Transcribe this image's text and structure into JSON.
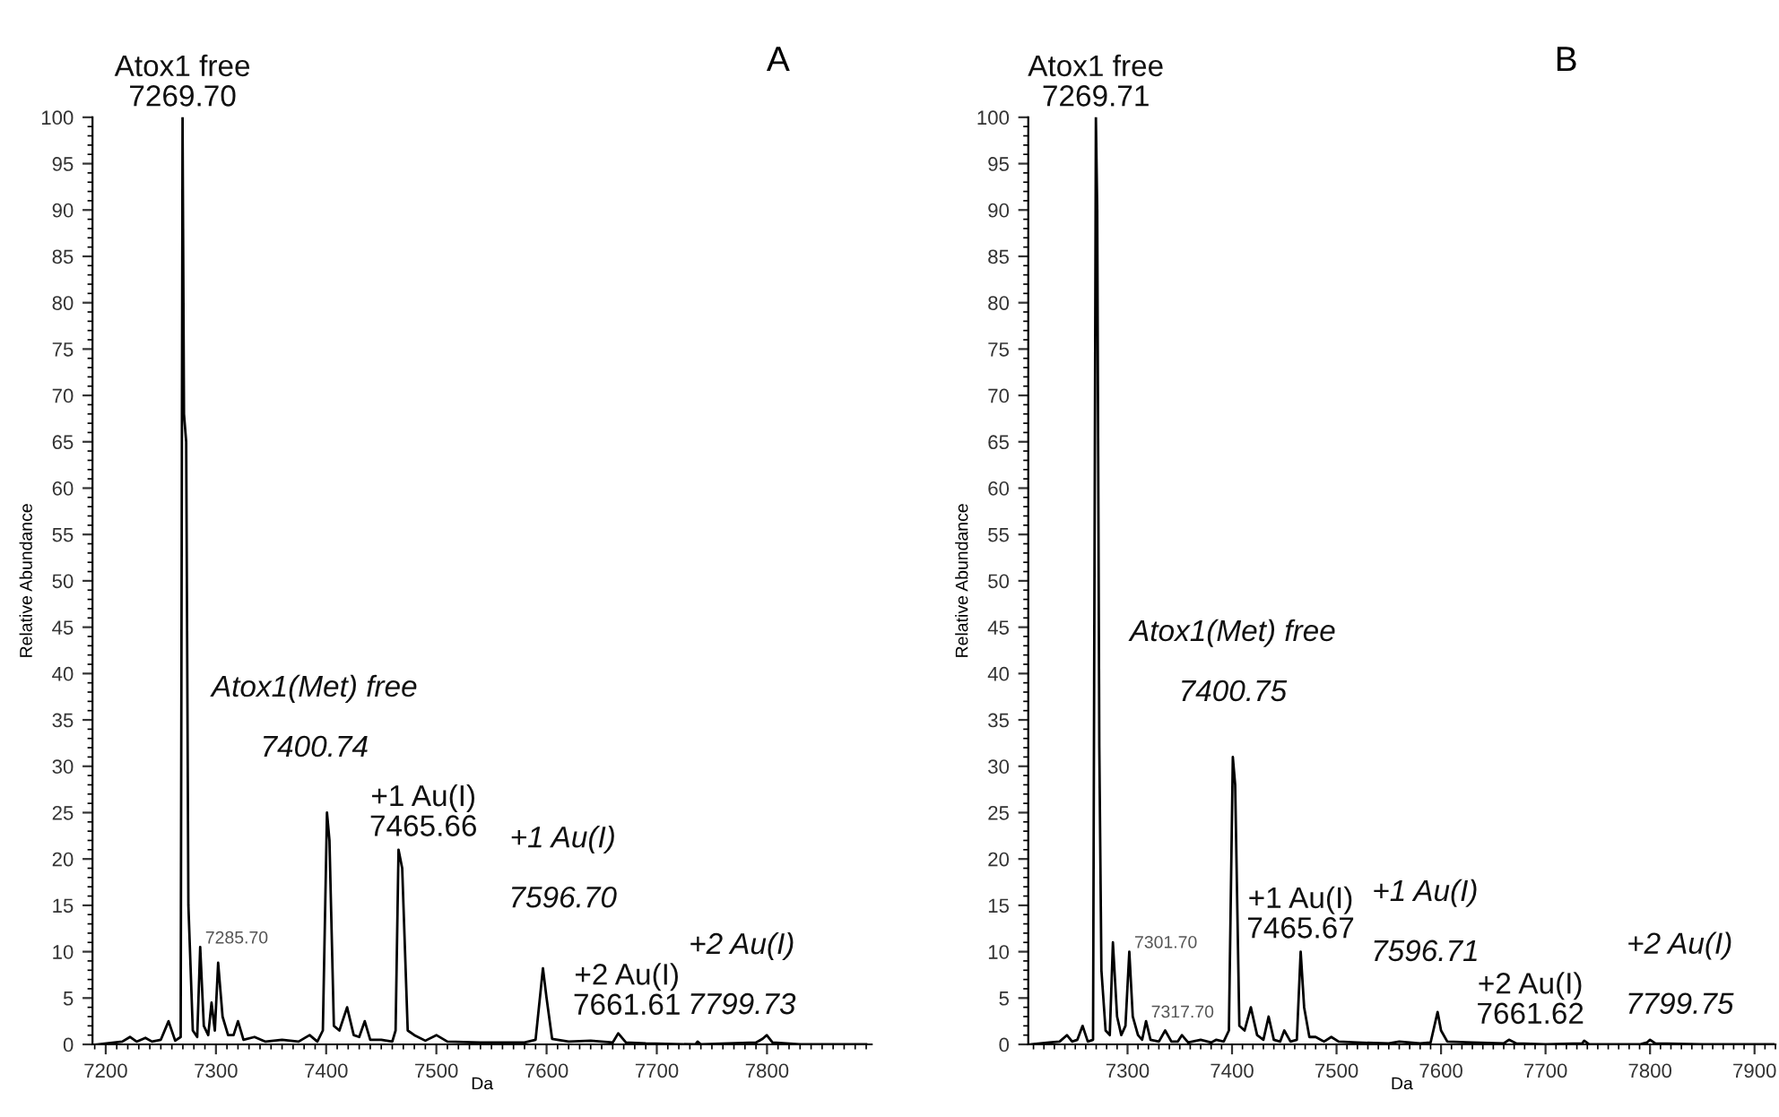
{
  "chart_data": [
    {
      "type": "line",
      "title": "A",
      "xlabel": "Da",
      "ylabel": "Relative Abundance",
      "xlim": [
        7188,
        7895
      ],
      "ylim": [
        0,
        100
      ],
      "xticks": [
        7200,
        7300,
        7400,
        7500,
        7600,
        7700,
        7800
      ],
      "yticks": [
        0,
        5,
        10,
        15,
        20,
        25,
        30,
        35,
        40,
        45,
        50,
        55,
        60,
        65,
        70,
        75,
        80,
        85,
        90,
        95,
        100
      ],
      "series": [
        {
          "color": "#000000",
          "x": [
            7192,
            7215,
            7222,
            7228,
            7236,
            7242,
            7250,
            7257,
            7263,
            7268,
            7269.7,
            7271,
            7273,
            7275,
            7279,
            7283,
            7285.7,
            7289,
            7293,
            7296,
            7299,
            7302,
            7306,
            7311,
            7316,
            7320,
            7325,
            7335,
            7345,
            7360,
            7375,
            7385,
            7392,
            7397,
            7400.74,
            7403,
            7407,
            7412,
            7419,
            7425,
            7430,
            7435,
            7440,
            7450,
            7460,
            7463,
            7465.66,
            7469,
            7474,
            7480,
            7490,
            7500,
            7510,
            7540,
            7580,
            7590,
            7596.7,
            7600,
            7605,
            7620,
            7640,
            7660,
            7665,
            7672,
            7690,
            7735,
            7737,
            7740,
            7790,
            7796,
            7799.73,
            7805,
            7830,
            7890
          ],
          "values": [
            0,
            0.3,
            0.8,
            0.3,
            0.7,
            0.3,
            0.5,
            2.5,
            0.4,
            0.8,
            100,
            68,
            65,
            15,
            1.5,
            0.8,
            10.5,
            2,
            1,
            4.5,
            1.5,
            8.8,
            3,
            1,
            1,
            2.5,
            0.5,
            0.8,
            0.3,
            0.5,
            0.3,
            1,
            0.3,
            1.5,
            25,
            22,
            2,
            1.5,
            4,
            1,
            0.8,
            2.5,
            0.5,
            0.5,
            0.3,
            1.5,
            21,
            19,
            1.5,
            1,
            0.4,
            1,
            0.3,
            0.2,
            0.2,
            0.5,
            8.2,
            5,
            0.6,
            0.3,
            0.4,
            0.2,
            1.2,
            0.2,
            0.1,
            0,
            0.3,
            0,
            0.2,
            0.6,
            1,
            0.2,
            0,
            0
          ]
        }
      ],
      "annotations": [
        {
          "text": "Atox1 free\n7269.70",
          "x": 7269.7,
          "y": 100
        },
        {
          "text": "7285.70",
          "x": 7285.7,
          "y": 10.5
        },
        {
          "text": "Atox1(Met) free\n\n7400.74",
          "x": 7400.74,
          "y": 25
        },
        {
          "text": "+1 Au(I)\n7465.66",
          "x": 7465.66,
          "y": 21
        },
        {
          "text": "+1 Au(I)\n\n7596.70",
          "x": 7596.7,
          "y": 8.2
        },
        {
          "text": "+2 Au(I)\n7661.61",
          "x": 7661.61,
          "y": 1.2
        },
        {
          "text": "+2 Au(I)\n\n7799.73",
          "x": 7799.73,
          "y": 1
        }
      ]
    },
    {
      "type": "line",
      "title": "B",
      "xlabel": "Da",
      "ylabel": "Relative Abundance",
      "xlim": [
        7205,
        7920
      ],
      "ylim": [
        0,
        100
      ],
      "xticks": [
        7300,
        7400,
        7500,
        7600,
        7700,
        7800,
        7900
      ],
      "yticks": [
        0,
        5,
        10,
        15,
        20,
        25,
        30,
        35,
        40,
        45,
        50,
        55,
        60,
        65,
        70,
        75,
        80,
        85,
        90,
        95,
        100
      ],
      "series": [
        {
          "color": "#000000",
          "x": [
            7206,
            7225,
            7235,
            7242,
            7247,
            7252,
            7257,
            7262,
            7267,
            7269.71,
            7271,
            7273,
            7275,
            7279,
            7283,
            7286,
            7290,
            7294,
            7298,
            7301.7,
            7305,
            7310,
            7314,
            7317.7,
            7322,
            7330,
            7336,
            7342,
            7348,
            7352,
            7358,
            7370,
            7380,
            7385,
            7392,
            7397,
            7400.75,
            7403,
            7407,
            7412,
            7418,
            7424,
            7430,
            7435,
            7440,
            7446,
            7450,
            7456,
            7462,
            7465.67,
            7469,
            7474,
            7480,
            7488,
            7495,
            7502,
            7520,
            7550,
            7560,
            7580,
            7590,
            7596.71,
            7600,
            7606,
            7630,
            7660,
            7665,
            7672,
            7700,
            7735,
            7737,
            7742,
            7790,
            7797,
            7800,
            7805,
            7850,
            7918
          ],
          "values": [
            0,
            0.2,
            0.3,
            1,
            0.3,
            0.5,
            2,
            0.3,
            0.5,
            100,
            90,
            32,
            8,
            1.5,
            1,
            11,
            3,
            1,
            2,
            10,
            3,
            1,
            0.5,
            2.5,
            0.5,
            0.3,
            1.5,
            0.3,
            0.3,
            1,
            0.2,
            0.5,
            0.2,
            0.5,
            0.3,
            1.5,
            31,
            28,
            2,
            1.5,
            4,
            1,
            0.5,
            3,
            0.5,
            0.3,
            1.5,
            0.3,
            0.5,
            10,
            4,
            0.8,
            0.8,
            0.3,
            0.8,
            0.3,
            0.2,
            0.1,
            0.3,
            0.1,
            0.2,
            3.5,
            1.5,
            0.3,
            0.2,
            0.1,
            0.5,
            0.1,
            0,
            0.1,
            0.4,
            0,
            0,
            0.2,
            0.5,
            0.1,
            0,
            0
          ]
        }
      ],
      "annotations": [
        {
          "text": "Atox1 free\n7269.71",
          "x": 7269.71,
          "y": 100
        },
        {
          "text": "7301.70",
          "x": 7301.7,
          "y": 10
        },
        {
          "text": "7317.70",
          "x": 7317.7,
          "y": 2.5
        },
        {
          "text": "Atox1(Met) free\n\n7400.75",
          "x": 7400.75,
          "y": 31
        },
        {
          "text": "+1 Au(I)\n7465.67",
          "x": 7465.67,
          "y": 10
        },
        {
          "text": "+1 Au(I)\n\n7596.71",
          "x": 7596.71,
          "y": 3.5
        },
        {
          "text": "+2 Au(I)\n7661.62",
          "x": 7661.62,
          "y": 0.5
        },
        {
          "text": "+2 Au(I)\n\n7799.75",
          "x": 7799.75,
          "y": 0.5
        }
      ]
    }
  ]
}
